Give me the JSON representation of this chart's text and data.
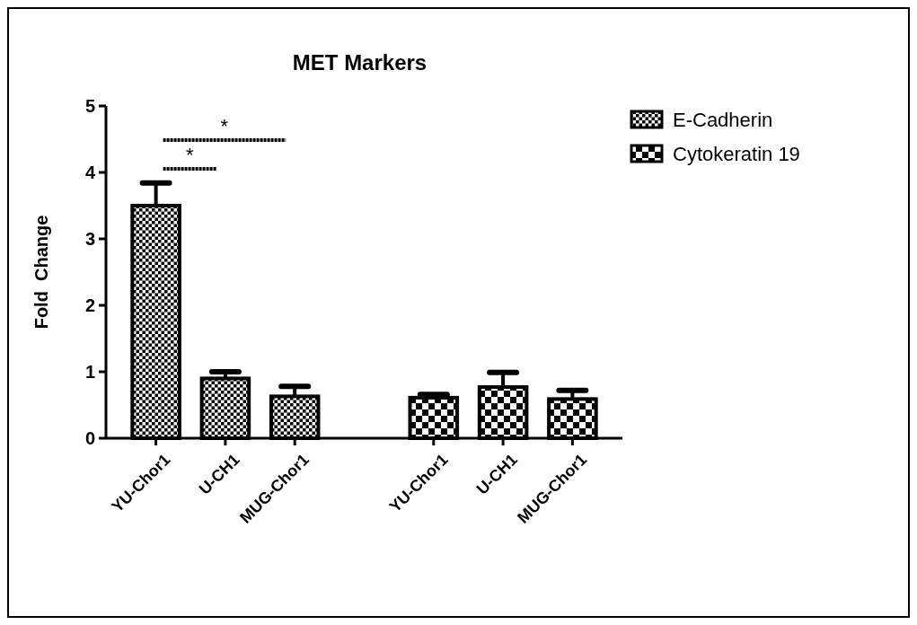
{
  "chart_data": {
    "type": "bar",
    "title": "MET Markers",
    "ylabel": "Fold  Change",
    "categories": [
      "YU-Chor1",
      "U-CH1",
      "MUG-Chor1",
      null,
      "YU-Chor1",
      "U-CH1",
      "MUG-Chor1"
    ],
    "series": [
      {
        "name": "E-Cadherin",
        "color": "#000000",
        "values": [
          3.5,
          0.9,
          0.63,
          null,
          null,
          null,
          null
        ],
        "errors": [
          0.34,
          0.1,
          0.15,
          null,
          null,
          null,
          null
        ]
      },
      {
        "name": "Cytokeratin 19",
        "color": "#000000",
        "values": [
          null,
          null,
          null,
          null,
          0.61,
          0.77,
          0.59
        ],
        "errors": [
          null,
          null,
          null,
          null,
          0.05,
          0.22,
          0.13
        ]
      }
    ],
    "ylim": [
      0,
      5
    ],
    "yticks": [
      0,
      1,
      2,
      3,
      4,
      5
    ],
    "legend": "top right",
    "annotations": [
      "*",
      "*"
    ]
  }
}
